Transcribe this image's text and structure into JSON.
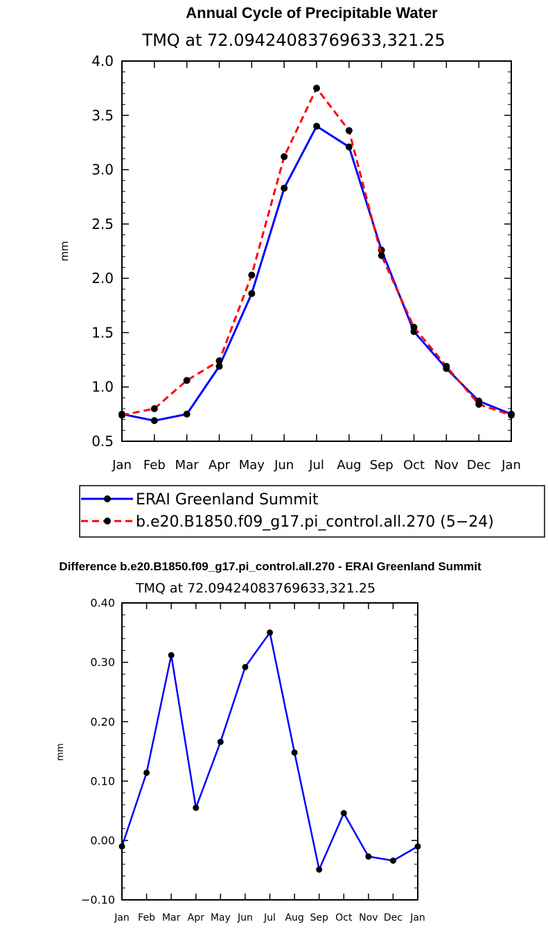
{
  "chart_data": [
    {
      "type": "line",
      "title": "Annual Cycle of Precipitable Water",
      "subtitle": "TMQ at 72.09424083769633,321.25",
      "ylabel": "mm",
      "xlabel": "",
      "ylim": [
        0.5,
        4.0
      ],
      "yticks": [
        "0.5",
        "1.0",
        "1.5",
        "2.0",
        "2.5",
        "3.0",
        "3.5",
        "4.0"
      ],
      "categories": [
        "Jan",
        "Feb",
        "Mar",
        "Apr",
        "May",
        "Jun",
        "Jul",
        "Aug",
        "Sep",
        "Oct",
        "Nov",
        "Dec",
        "Jan"
      ],
      "legend_position": "bottom",
      "series": [
        {
          "name": "ERAI Greenland Summit",
          "color": "#0000ff",
          "dash": "solid",
          "values": [
            0.75,
            0.69,
            0.75,
            1.19,
            1.86,
            2.83,
            3.4,
            3.21,
            2.26,
            1.51,
            1.17,
            0.87,
            0.75
          ]
        },
        {
          "name": "b.e20.B1850.f09_g17.pi_control.all.270 (5−24)",
          "color": "#ff0000",
          "dash": "dashed",
          "values": [
            0.74,
            0.8,
            1.06,
            1.24,
            2.03,
            3.12,
            3.75,
            3.36,
            2.21,
            1.55,
            1.19,
            0.84,
            0.74
          ]
        }
      ],
      "grid": false
    },
    {
      "type": "line",
      "title": "Difference b.e20.B1850.f09_g17.pi_control.all.270 - ERAI Greenland Summit",
      "subtitle": "TMQ at 72.09424083769633,321.25",
      "ylabel": "mm",
      "xlabel": "",
      "ylim": [
        -0.1,
        0.4
      ],
      "yticks": [
        "−0.10",
        "0.00",
        "0.10",
        "0.20",
        "0.30",
        "0.40"
      ],
      "categories": [
        "Jan",
        "Feb",
        "Mar",
        "Apr",
        "May",
        "Jun",
        "Jul",
        "Aug",
        "Sep",
        "Oct",
        "Nov",
        "Dec",
        "Jan"
      ],
      "series": [
        {
          "name": "",
          "color": "#0000ff",
          "dash": "solid",
          "values": [
            -0.01,
            0.114,
            0.312,
            0.055,
            0.166,
            0.292,
            0.35,
            0.148,
            -0.049,
            0.046,
            -0.027,
            -0.034,
            -0.01
          ]
        }
      ],
      "grid": false
    }
  ]
}
